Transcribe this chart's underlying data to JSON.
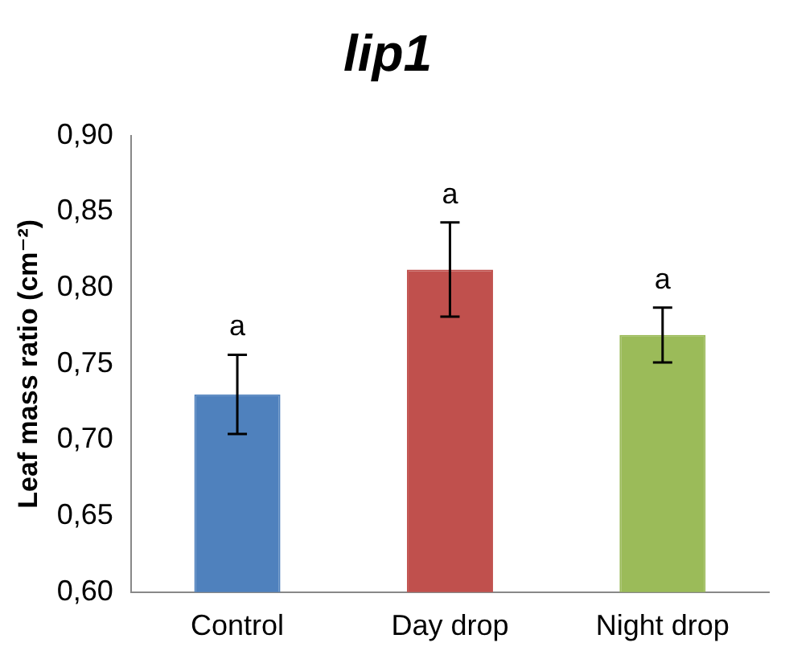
{
  "chart_data": {
    "type": "bar",
    "title": "lip1",
    "ylabel": "Leaf mass ratio (cm⁻²)",
    "categories": [
      "Control",
      "Day drop",
      "Night drop"
    ],
    "values": [
      0.73,
      0.812,
      0.769
    ],
    "colors": [
      "#4f81bd",
      "#c0504d",
      "#9bbb59"
    ],
    "errors": [
      0.026,
      0.031,
      0.018
    ],
    "ylim": [
      0.6,
      0.9
    ],
    "yticks": [
      {
        "value": 0.6,
        "label": "0,60"
      },
      {
        "value": 0.65,
        "label": "0,65"
      },
      {
        "value": 0.7,
        "label": "0,70"
      },
      {
        "value": 0.75,
        "label": "0,75"
      },
      {
        "value": 0.8,
        "label": "0,80"
      },
      {
        "value": 0.85,
        "label": "0,85"
      },
      {
        "value": 0.9,
        "label": "0,90"
      }
    ],
    "annotations": [
      {
        "text": "a",
        "x": "Control",
        "y": 0.756
      },
      {
        "text": "a",
        "x": "Day drop",
        "y": 0.843
      },
      {
        "text": "a",
        "x": "Night drop",
        "y": 0.787
      }
    ],
    "grid": false,
    "legend": false
  }
}
